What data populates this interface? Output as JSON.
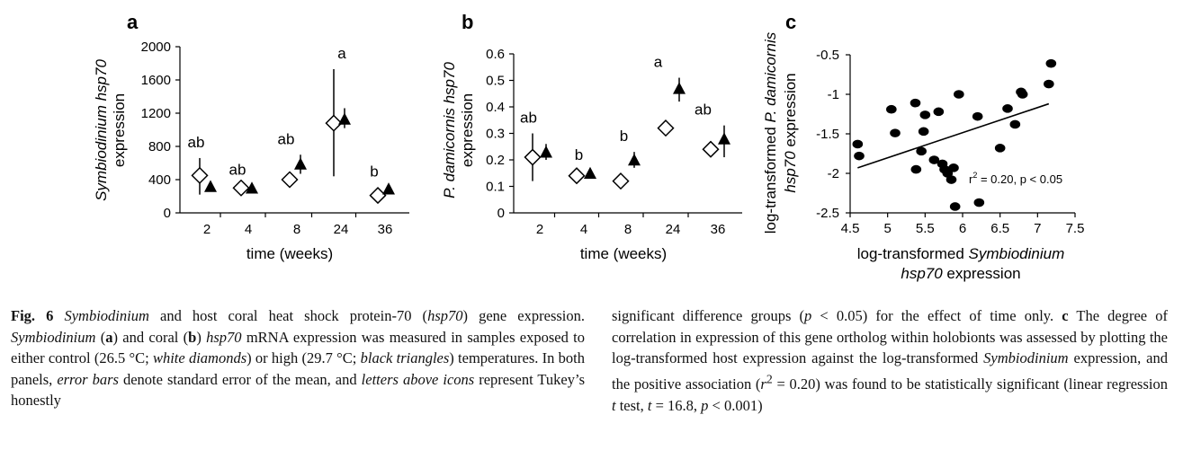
{
  "figure": {
    "panel_a_label": "a",
    "panel_b_label": "b",
    "panel_c_label": "c",
    "caption": {
      "fig_label": "Fig. 6",
      "left": [
        {
          "t": "Symbiodinium",
          "i": true
        },
        {
          "t": " and host coral heat shock protein-70 ("
        },
        {
          "t": "hsp70",
          "i": true
        },
        {
          "t": ") gene expression. "
        },
        {
          "t": "Symbiodinium",
          "i": true
        },
        {
          "t": " ("
        },
        {
          "t": "a",
          "b": true
        },
        {
          "t": ") and coral ("
        },
        {
          "t": "b",
          "b": true
        },
        {
          "t": ") "
        },
        {
          "t": "hsp70",
          "i": true
        },
        {
          "t": " mRNA expression was measured in samples exposed to either control (26.5 °C; "
        },
        {
          "t": "white diamonds",
          "i": true
        },
        {
          "t": ") or high (29.7 °C; "
        },
        {
          "t": "black triangles",
          "i": true
        },
        {
          "t": ") temperatures. In both panels, "
        },
        {
          "t": "error bars",
          "i": true
        },
        {
          "t": " denote standard error of the mean, and "
        },
        {
          "t": "letters above icons",
          "i": true
        },
        {
          "t": " represent Tukey’s honestly"
        }
      ],
      "right": [
        {
          "t": "significant difference groups ("
        },
        {
          "t": "p",
          "i": true
        },
        {
          "t": " < 0.05) for the effect of time only. "
        },
        {
          "t": "c",
          "b": true
        },
        {
          "t": " The degree of correlation in expression of this gene ortholog within holobionts was assessed by plotting the log-transformed host expression against the log-transformed "
        },
        {
          "t": "Symbiodinium",
          "i": true
        },
        {
          "t": " expression, and the positive association ("
        },
        {
          "t": "r",
          "i": true
        },
        {
          "t": "2",
          "sup": true
        },
        {
          "t": " = 0.20) was found to be statistically significant (linear regression "
        },
        {
          "t": "t",
          "i": true
        },
        {
          "t": " test, "
        },
        {
          "t": "t",
          "i": true
        },
        {
          "t": " = 16.8, "
        },
        {
          "t": "p",
          "i": true
        },
        {
          "t": " < 0.001)"
        }
      ]
    }
  },
  "chart_data": [
    {
      "type": "scatter",
      "panel": "a",
      "ylabel_line1": "Symbiodinium hsp70",
      "ylabel_line2": "expression",
      "xlabel": "time (weeks)",
      "categories": [
        "2",
        "4",
        "8",
        "24",
        "36"
      ],
      "ylim": [
        0,
        2000
      ],
      "yticks": [
        0,
        400,
        800,
        1200,
        1600,
        2000
      ],
      "yticklabels": [
        "0",
        "400",
        "800",
        "1200",
        "1600",
        "2000"
      ],
      "series": [
        {
          "name": "control (26.5 °C)",
          "marker": "white diamond",
          "values": [
            450,
            300,
            400,
            1080,
            210
          ],
          "err_low": [
            220,
            270,
            350,
            440,
            170
          ],
          "err_high": [
            660,
            330,
            450,
            1730,
            250
          ]
        },
        {
          "name": "high (29.7 °C)",
          "marker": "black triangle",
          "values": [
            320,
            300,
            590,
            1130,
            290
          ],
          "err_low": [
            300,
            280,
            470,
            1020,
            270
          ],
          "err_high": [
            340,
            320,
            700,
            1260,
            310
          ]
        }
      ],
      "letters": [
        "ab",
        "ab",
        "ab",
        "a",
        "b"
      ]
    },
    {
      "type": "scatter",
      "panel": "b",
      "ylabel_line1": "P. damicornis hsp70",
      "ylabel_line2": "expression",
      "xlabel": "time (weeks)",
      "categories": [
        "2",
        "4",
        "8",
        "24",
        "36"
      ],
      "ylim": [
        0,
        0.6
      ],
      "yticks": [
        0,
        0.1,
        0.2,
        0.3,
        0.4,
        0.5,
        0.6
      ],
      "yticklabels": [
        "0",
        "0.1",
        "0.2",
        "0.3",
        "0.4",
        "0.5",
        "0.6"
      ],
      "series": [
        {
          "name": "control (26.5 °C)",
          "marker": "white diamond",
          "values": [
            0.21,
            0.14,
            0.12,
            0.32,
            0.24
          ],
          "err_low": [
            0.12,
            0.13,
            0.11,
            0.31,
            0.22
          ],
          "err_high": [
            0.3,
            0.155,
            0.13,
            0.33,
            0.27
          ]
        },
        {
          "name": "high (29.7 °C)",
          "marker": "black triangle",
          "values": [
            0.23,
            0.15,
            0.2,
            0.47,
            0.28
          ],
          "err_low": [
            0.2,
            0.14,
            0.17,
            0.42,
            0.21
          ],
          "err_high": [
            0.26,
            0.16,
            0.23,
            0.51,
            0.33
          ]
        }
      ],
      "letters": [
        "ab",
        "b",
        "b",
        "a",
        "ab"
      ]
    },
    {
      "type": "scatter",
      "panel": "c",
      "ylabel_line1": "log-transformed P. damicornis",
      "ylabel_line2": "hsp70 expression",
      "xlabel_line1": "log-transformed Symbiodinium",
      "xlabel_line2": "hsp70 expression",
      "xlim": [
        4.5,
        7.5
      ],
      "ylim": [
        -2.5,
        -0.5
      ],
      "xticks": [
        4.5,
        5,
        5.5,
        6,
        6.5,
        7,
        7.5
      ],
      "xticklabels": [
        "4.5",
        "5",
        "5.5",
        "6",
        "6.5",
        "7",
        "7.5"
      ],
      "yticks": [
        -0.5,
        -1,
        -1.5,
        -2,
        -2.5
      ],
      "yticklabels": [
        "-0.5",
        "-1",
        "-1.5",
        "-2",
        "-2.5"
      ],
      "points": [
        [
          4.6,
          -1.63
        ],
        [
          4.62,
          -1.78
        ],
        [
          5.05,
          -1.19
        ],
        [
          5.1,
          -1.49
        ],
        [
          5.37,
          -1.11
        ],
        [
          5.38,
          -1.95
        ],
        [
          5.45,
          -1.72
        ],
        [
          5.48,
          -1.47
        ],
        [
          5.5,
          -1.26
        ],
        [
          5.62,
          -1.83
        ],
        [
          5.68,
          -1.22
        ],
        [
          5.73,
          -1.88
        ],
        [
          5.76,
          -1.95
        ],
        [
          5.8,
          -2.0
        ],
        [
          5.85,
          -2.08
        ],
        [
          5.88,
          -1.93
        ],
        [
          5.9,
          -2.42
        ],
        [
          5.95,
          -1.0
        ],
        [
          6.2,
          -1.28
        ],
        [
          6.22,
          -2.37
        ],
        [
          6.5,
          -1.68
        ],
        [
          6.6,
          -1.18
        ],
        [
          6.7,
          -1.38
        ],
        [
          6.78,
          -0.97
        ],
        [
          6.8,
          -1.0
        ],
        [
          7.15,
          -0.87
        ],
        [
          7.18,
          -0.61
        ]
      ],
      "regression": {
        "x": [
          4.6,
          7.15
        ],
        "y": [
          -1.93,
          -1.12
        ]
      },
      "annotation_r": "r",
      "annotation_sup": "2",
      "annotation_rest": " = 0.20, p < 0.05"
    }
  ]
}
